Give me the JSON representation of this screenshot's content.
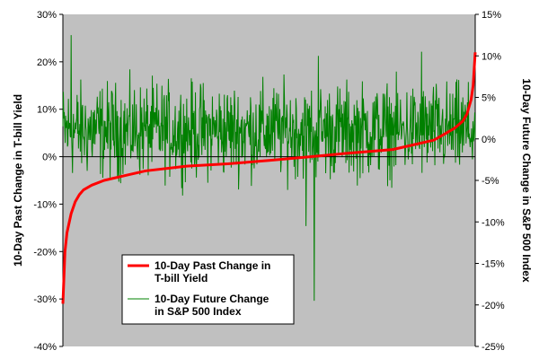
{
  "chart_data": {
    "type": "line",
    "title": "",
    "xlabel": "",
    "ylabel_left": "10-Day Past Change in T-bill Yield",
    "ylabel_right": "10-Day Future Change in S&P 500 Index",
    "y_left": {
      "min": -40,
      "max": 30,
      "step": 10,
      "ticks": [
        "30%",
        "20%",
        "10%",
        "0%",
        "-10%",
        "-20%",
        "-30%",
        "-40%"
      ]
    },
    "y_right": {
      "min": -25,
      "max": 15,
      "step": 5,
      "ticks": [
        "15%",
        "10%",
        "5%",
        "0%",
        "-5%",
        "-10%",
        "-15%",
        "-20%",
        "-25%"
      ]
    },
    "grid": false,
    "plot_background": "#c0c0c0",
    "legend": {
      "placement": "bottom-left inside plot"
    },
    "series": [
      {
        "name": "10-Day Past Change in T-bill Yield",
        "name_lines": [
          "10-Day Past Change in",
          "T-bill Yield"
        ],
        "axis": "left",
        "color": "#ff0000",
        "shape": "sorted ascending",
        "points_pct_of_range": [
          0,
          0.5,
          1,
          2,
          3,
          4,
          5,
          7,
          10,
          15,
          20,
          30,
          40,
          50,
          60,
          70,
          80,
          85,
          90,
          93,
          95,
          97,
          98,
          99,
          99.5,
          100
        ],
        "values": [
          -31,
          -20,
          -16,
          -12,
          -9.5,
          -8,
          -7,
          -6,
          -5,
          -4,
          -3,
          -2,
          -1.5,
          -0.8,
          0,
          0.8,
          1.5,
          2.5,
          3.5,
          5,
          6,
          7.5,
          9,
          12,
          15,
          22
        ]
      },
      {
        "name": "10-Day Future Change in S&P 500 Index",
        "name_lines": [
          "10-Day Future Change",
          "in S&P 500 Index"
        ],
        "axis": "right",
        "color": "#008000",
        "shape": "noisy series of daily observations ordered by T-bill change",
        "typical_range": [
          -4,
          6
        ],
        "extremes": [
          {
            "position_pct": 2,
            "value": 12.5
          },
          {
            "position_pct": 59,
            "value": -10.5
          },
          {
            "position_pct": 61,
            "value": -19.5
          },
          {
            "position_pct": 62,
            "value": 10
          },
          {
            "position_pct": 87,
            "value": 10.5
          }
        ]
      }
    ]
  }
}
